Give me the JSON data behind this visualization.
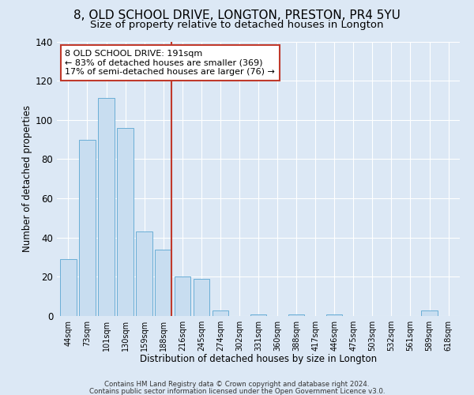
{
  "title": "8, OLD SCHOOL DRIVE, LONGTON, PRESTON, PR4 5YU",
  "subtitle": "Size of property relative to detached houses in Longton",
  "xlabel": "Distribution of detached houses by size in Longton",
  "ylabel": "Number of detached properties",
  "bar_labels": [
    "44sqm",
    "73sqm",
    "101sqm",
    "130sqm",
    "159sqm",
    "188sqm",
    "216sqm",
    "245sqm",
    "274sqm",
    "302sqm",
    "331sqm",
    "360sqm",
    "388sqm",
    "417sqm",
    "446sqm",
    "475sqm",
    "503sqm",
    "532sqm",
    "561sqm",
    "589sqm",
    "618sqm"
  ],
  "bar_values": [
    29,
    90,
    111,
    96,
    43,
    34,
    20,
    19,
    3,
    0,
    1,
    0,
    1,
    0,
    1,
    0,
    0,
    0,
    0,
    3,
    0
  ],
  "bar_color": "#c8ddf0",
  "bar_edge_color": "#6aaed6",
  "ylim": [
    0,
    140
  ],
  "yticks": [
    0,
    20,
    40,
    60,
    80,
    100,
    120,
    140
  ],
  "vline_color": "#c0392b",
  "annotation_line1": "8 OLD SCHOOL DRIVE: 191sqm",
  "annotation_line2": "← 83% of detached houses are smaller (369)",
  "annotation_line3": "17% of semi-detached houses are larger (76) →",
  "annotation_box_color": "#ffffff",
  "annotation_box_edge": "#c0392b",
  "footer1": "Contains HM Land Registry data © Crown copyright and database right 2024.",
  "footer2": "Contains public sector information licensed under the Open Government Licence v3.0.",
  "bg_color": "#dce8f5",
  "grid_color": "#ffffff",
  "title_fontsize": 11,
  "subtitle_fontsize": 9.5,
  "xlabel_fontsize": 8.5,
  "ylabel_fontsize": 8.5
}
